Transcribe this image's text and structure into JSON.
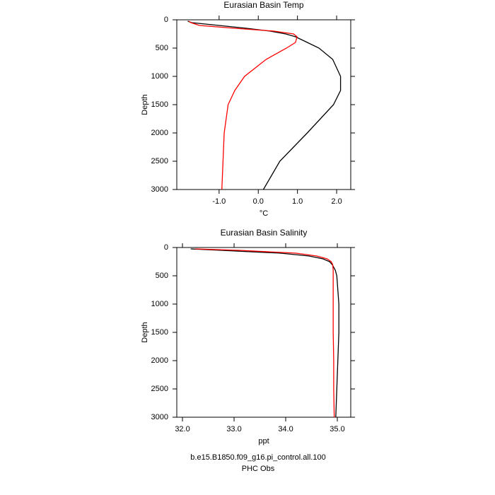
{
  "chart_data": [
    {
      "type": "line",
      "title": "Eurasian Basin Temp",
      "xlabel": "°C",
      "ylabel": "Depth",
      "y": [
        25,
        50,
        100,
        150,
        200,
        250,
        300,
        400,
        500,
        700,
        1000,
        1250,
        1500,
        2000,
        2500,
        3000
      ],
      "series": [
        {
          "name": "b.e15.B1850.f09_g16.pi_control.all.100",
          "color": "#000000",
          "values": [
            -1.8,
            -1.7,
            -1.0,
            -0.3,
            0.3,
            0.7,
            0.95,
            1.25,
            1.55,
            1.9,
            2.1,
            2.1,
            1.92,
            1.25,
            0.55,
            0.13
          ]
        },
        {
          "name": "PHC Obs",
          "color": "#ff0000",
          "values": [
            -1.77,
            -1.72,
            -1.5,
            -0.6,
            0.4,
            0.9,
            0.99,
            0.95,
            0.72,
            0.2,
            -0.35,
            -0.6,
            -0.77,
            -0.87,
            -0.9,
            -0.93
          ]
        }
      ],
      "xlim": [
        -2.08,
        2.36
      ],
      "xticks": [
        {
          "value": -1,
          "label": "-1.0"
        },
        {
          "value": 0,
          "label": "0.0"
        },
        {
          "value": 1,
          "label": "1.0"
        },
        {
          "value": 2,
          "label": "2.0"
        }
      ],
      "ylim": [
        3000,
        0
      ],
      "yticks": [
        0,
        500,
        1000,
        1500,
        2000,
        2500,
        3000
      ]
    },
    {
      "type": "line",
      "title": "Eurasian Basin Salinity",
      "xlabel": "ppt",
      "ylabel": "Depth",
      "y": [
        25,
        50,
        100,
        150,
        200,
        250,
        300,
        400,
        500,
        1000,
        1500,
        2000,
        2500,
        3000
      ],
      "series": [
        {
          "color": "#000000",
          "values": [
            32.16,
            32.75,
            33.9,
            34.45,
            34.72,
            34.85,
            34.9,
            34.96,
            34.99,
            35.03,
            35.03,
            35.01,
            34.99,
            34.97
          ]
        },
        {
          "color": "#ff0000",
          "values": [
            32.25,
            33.1,
            34.2,
            34.6,
            34.8,
            34.88,
            34.91,
            34.92,
            34.92,
            34.92,
            34.92,
            34.93,
            34.93,
            34.94
          ]
        }
      ],
      "xlim": [
        31.89,
        35.26
      ],
      "xticks": [
        {
          "value": 32,
          "label": "32.0"
        },
        {
          "value": 33,
          "label": "33.0"
        },
        {
          "value": 34,
          "label": "34.0"
        },
        {
          "value": 35,
          "label": "35.0"
        }
      ],
      "ylim": [
        3000,
        0
      ],
      "yticks": [
        0,
        500,
        1000,
        1500,
        2000,
        2500,
        3000
      ]
    }
  ]
}
